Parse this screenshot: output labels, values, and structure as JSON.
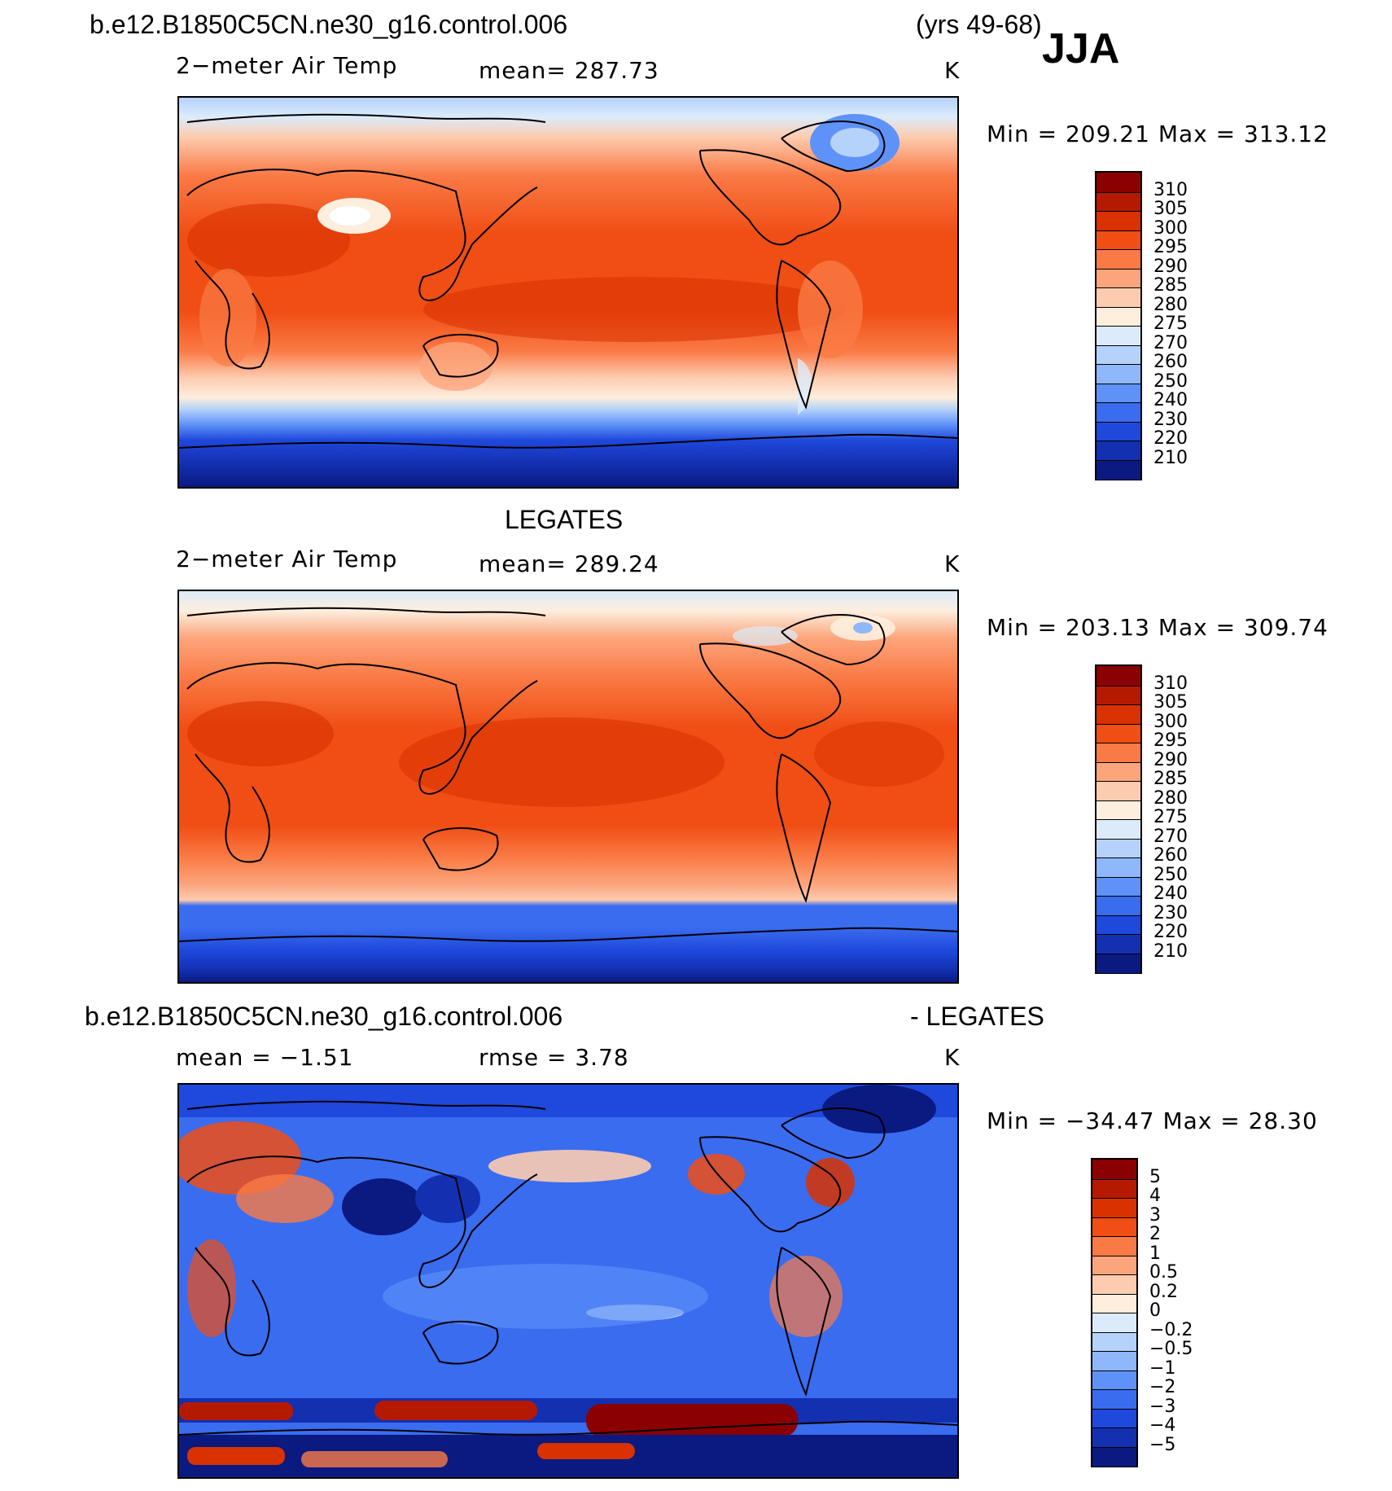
{
  "header": {
    "case": "b.e12.B1850C5CN.ne30_g16.control.006",
    "years": "(yrs 49-68)",
    "season": "JJA"
  },
  "panel1": {
    "var": "2−meter Air Temp",
    "mean": "mean=  287.73",
    "units": "K",
    "minmax": "Min  =  209.21  Max  =  313.12"
  },
  "panel2": {
    "title": "LEGATES",
    "var": "2−meter Air Temp",
    "mean": "mean=  289.24",
    "units": "K",
    "minmax": "Min  =  203.13  Max  =  309.74"
  },
  "panel3": {
    "title_left": "b.e12.B1850C5CN.ne30_g16.control.006",
    "title_right": "- LEGATES",
    "mean": "mean  =    −1.51",
    "rmse": "rmse  =      3.78",
    "units": "K",
    "minmax": "Min  =  −34.47  Max  =     28.30"
  },
  "colorbar_abs": {
    "labels": [
      "310",
      "305",
      "300",
      "295",
      "290",
      "285",
      "280",
      "275",
      "270",
      "260",
      "250",
      "240",
      "230",
      "220",
      "210"
    ],
    "colors": [
      "#8b0000",
      "#b51a00",
      "#d93100",
      "#f04e14",
      "#fa7a45",
      "#fca57c",
      "#fdccb0",
      "#fdeedd",
      "#dcebfb",
      "#b5d2fb",
      "#8fb7fb",
      "#5f92f8",
      "#3a6cf0",
      "#1f48dc",
      "#1330b0",
      "#0a1a80"
    ]
  },
  "colorbar_diff": {
    "labels": [
      "5",
      "4",
      "3",
      "2",
      "1",
      "0.5",
      "0.2",
      "0",
      "−0.2",
      "−0.5",
      "−1",
      "−2",
      "−3",
      "−4",
      "−5"
    ],
    "colors": [
      "#8b0000",
      "#b51a00",
      "#d93100",
      "#f04e14",
      "#fa7a45",
      "#fca57c",
      "#fdccb0",
      "#fdeedd",
      "#dcebfb",
      "#b5d2fb",
      "#8fb7fb",
      "#5f92f8",
      "#3a6cf0",
      "#1f48dc",
      "#1330b0",
      "#0a1a80"
    ]
  }
}
